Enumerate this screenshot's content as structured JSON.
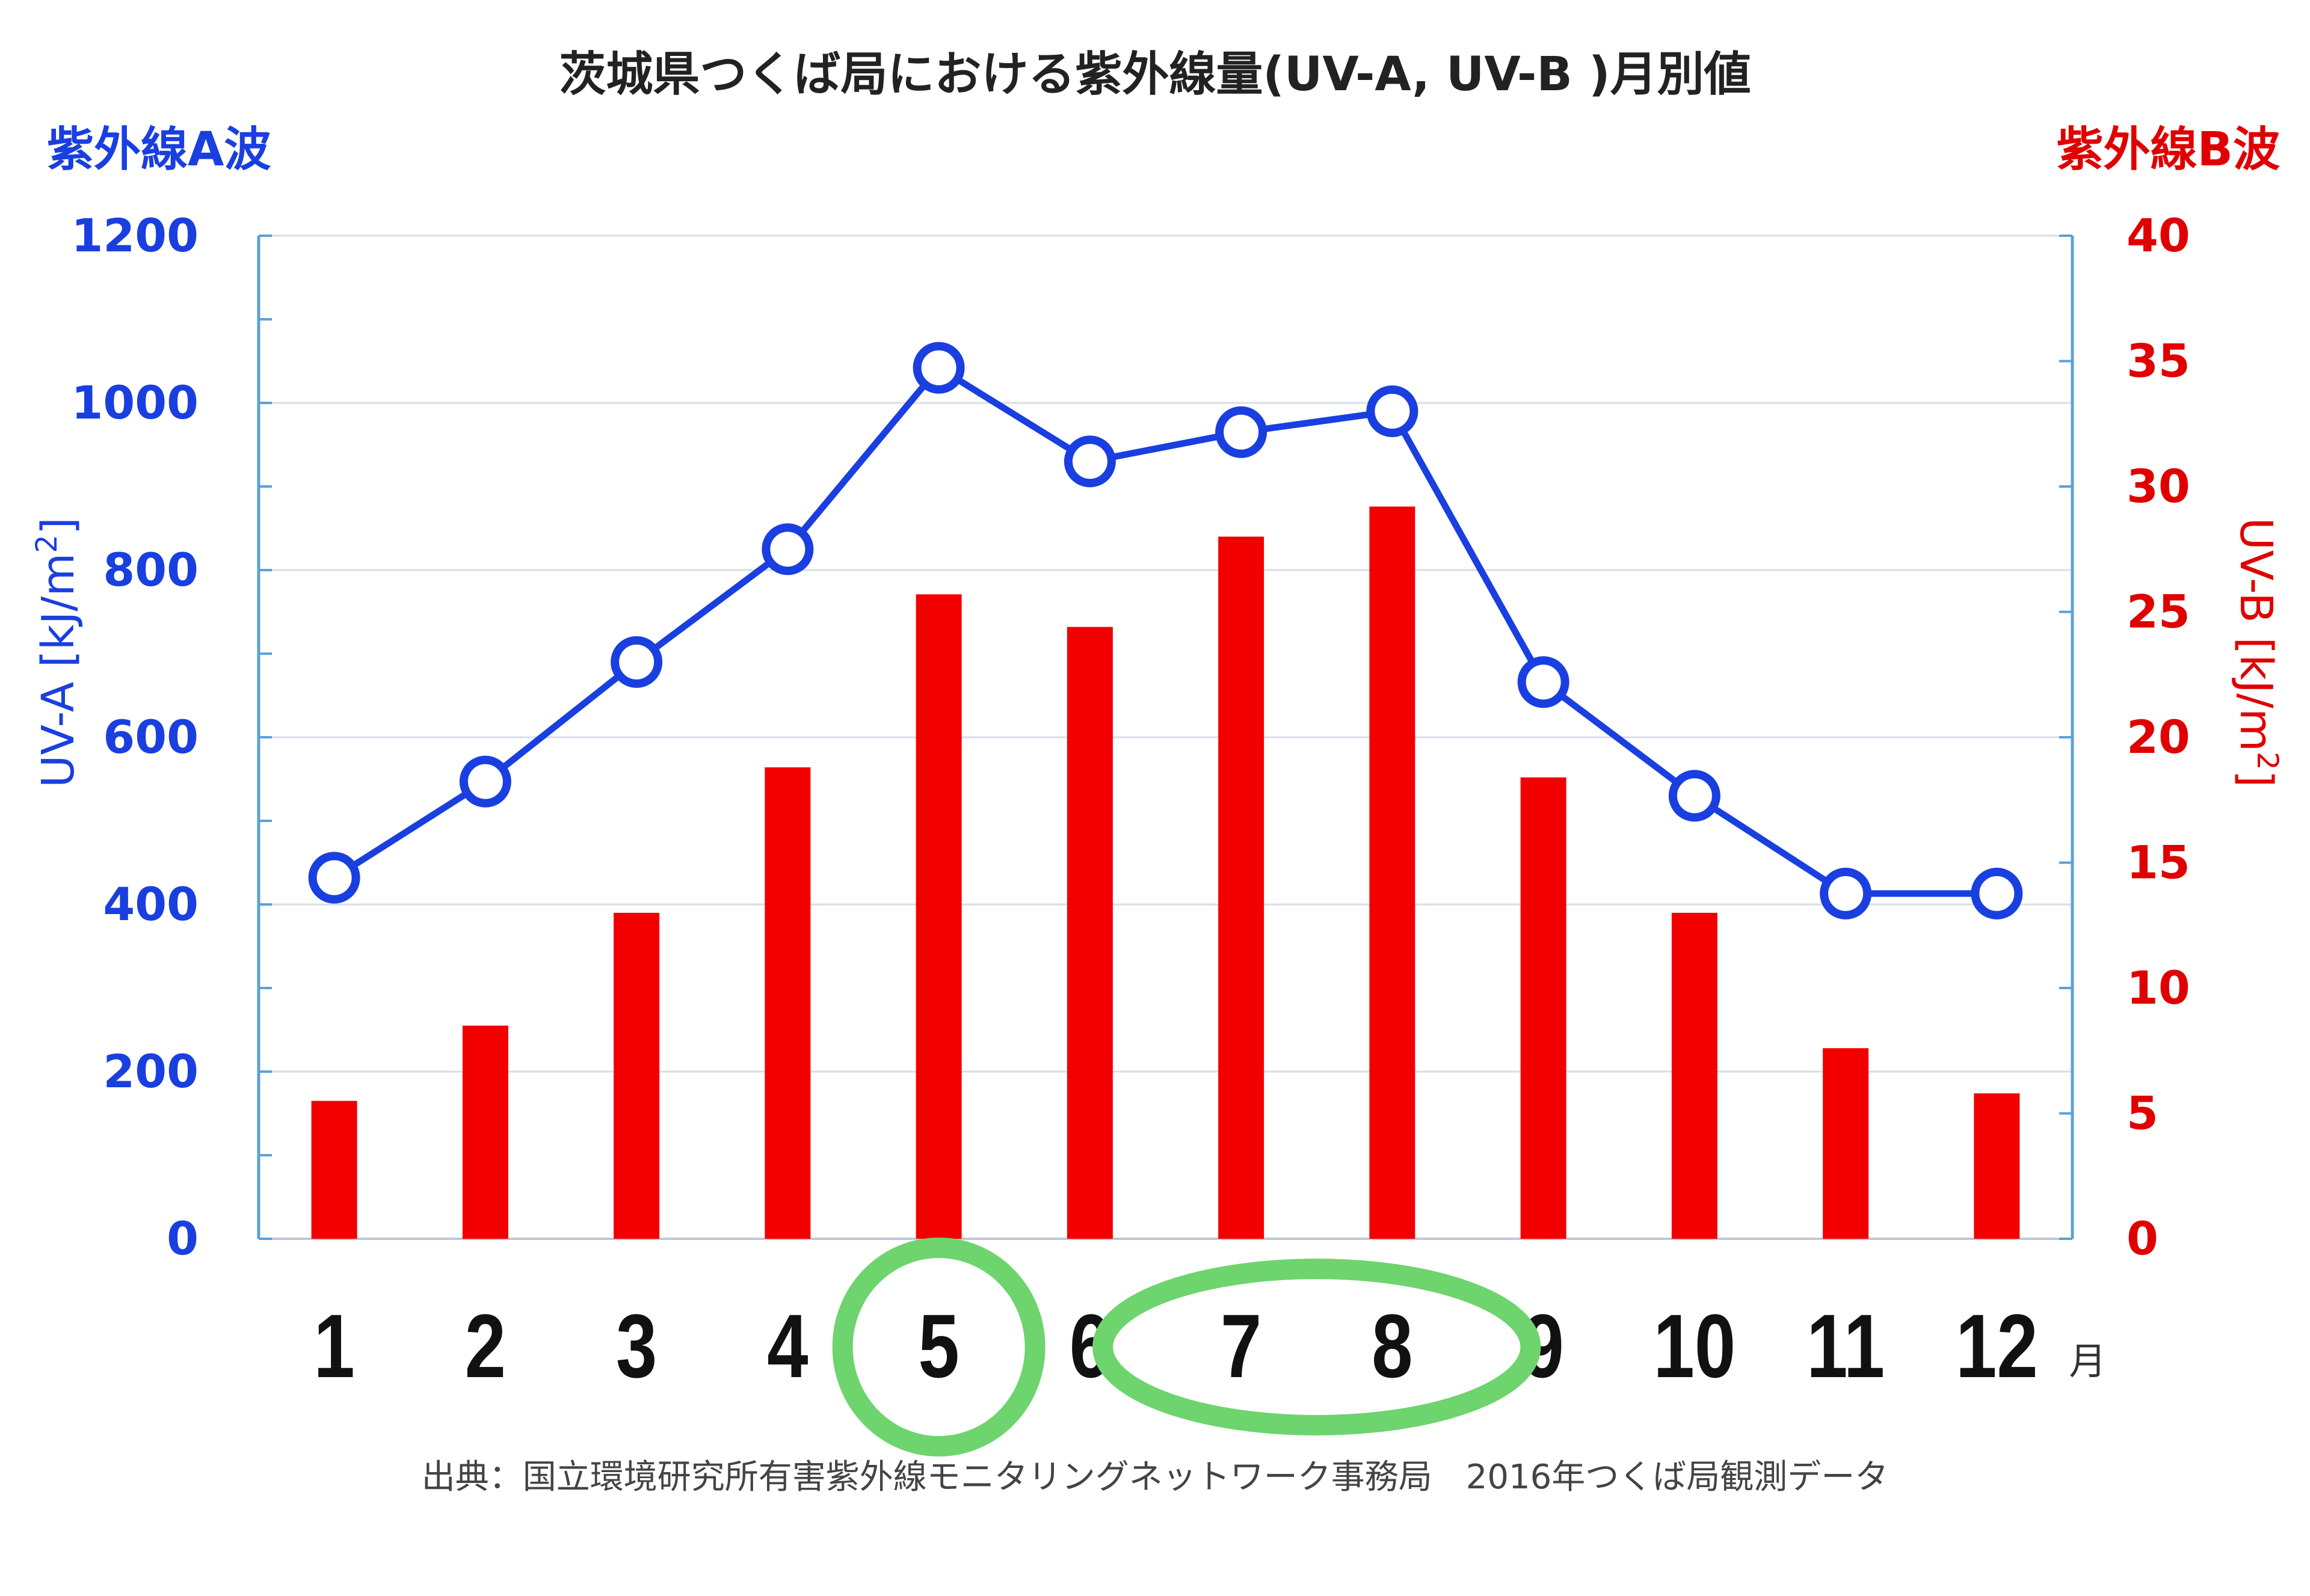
{
  "chart_data": {
    "type": "bar+line",
    "title": "茨城県つくば局における紫外線量(UV-A, UV-B )月別値",
    "categories": [
      "1",
      "2",
      "3",
      "4",
      "5",
      "6",
      "7",
      "8",
      "9",
      "10",
      "11",
      "12"
    ],
    "x_unit": "月",
    "left_axis": {
      "heading": "紫外線A波",
      "label": "UV-A [kJ/m",
      "label_sup": "2",
      "label_close": "]",
      "range": [
        0,
        1200
      ],
      "ticks": [
        "0",
        "200",
        "400",
        "600",
        "800",
        "1000",
        "1200"
      ],
      "color": "#1a3fe0"
    },
    "right_axis": {
      "heading": "紫外線B波",
      "label": "UV-B [kJ/m",
      "label_sup": "2",
      "label_close": "]",
      "range": [
        0,
        40
      ],
      "ticks": [
        "0",
        "5",
        "10",
        "15",
        "20",
        "25",
        "30",
        "35",
        "40"
      ],
      "color": "#e00000"
    },
    "series": [
      {
        "type": "bar",
        "axis": "right",
        "color": "#f20000",
        "values": [
          5.5,
          8.5,
          13.0,
          18.8,
          25.7,
          24.4,
          28.0,
          29.2,
          18.4,
          13.0,
          7.6,
          5.8
        ]
      },
      {
        "type": "line",
        "axis": "left",
        "color": "#1a3fe0",
        "values": [
          432,
          547,
          690,
          825,
          1042,
          930,
          965,
          990,
          666,
          530,
          413,
          413
        ]
      }
    ],
    "highlighted_months": [
      [
        "5"
      ],
      [
        "7",
        "8"
      ]
    ],
    "highlight_color": "#6ed46e",
    "grid": true,
    "source": "出典：国立環境研究所有害紫外線モニタリングネットワーク事務局　2016年つくば局観測データ"
  }
}
